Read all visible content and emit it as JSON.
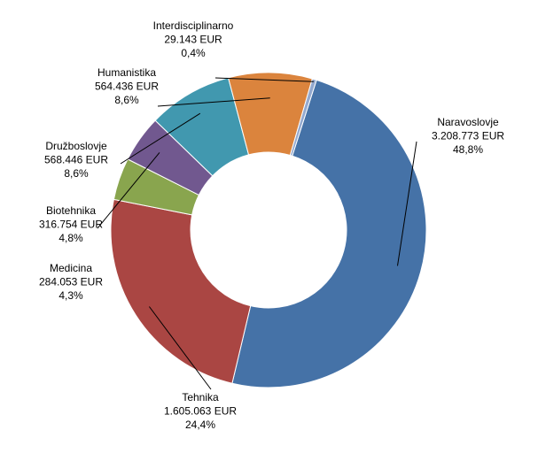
{
  "chart_data": {
    "type": "pie",
    "variant": "donut",
    "legend": "none",
    "slices": [
      {
        "name": "Naravoslovje",
        "value": 3208773,
        "value_label": "3.208.773 EUR",
        "percent": 48.8,
        "percent_label": "48,8%",
        "color": "#4572A7"
      },
      {
        "name": "Tehnika",
        "value": 1605063,
        "value_label": "1.605.063 EUR",
        "percent": 24.4,
        "percent_label": "24,4%",
        "color": "#AA4643"
      },
      {
        "name": "Medicina",
        "value": 284053,
        "value_label": "284.053 EUR",
        "percent": 4.3,
        "percent_label": "4,3%",
        "color": "#89A54E"
      },
      {
        "name": "Biotehnika",
        "value": 316754,
        "value_label": "316.754 EUR",
        "percent": 4.8,
        "percent_label": "4,8%",
        "color": "#71588F"
      },
      {
        "name": "Družboslovje",
        "value": 568446,
        "value_label": "568.446 EUR",
        "percent": 8.6,
        "percent_label": "8,6%",
        "color": "#4198AF"
      },
      {
        "name": "Humanistika",
        "value": 564436,
        "value_label": "564.436 EUR",
        "percent": 8.6,
        "percent_label": "8,6%",
        "color": "#DB843D"
      },
      {
        "name": "Interdisciplinarno",
        "value": 29143,
        "value_label": "29.143 EUR",
        "percent": 0.4,
        "percent_label": "0,4%",
        "color": "#93A9CF"
      }
    ]
  }
}
